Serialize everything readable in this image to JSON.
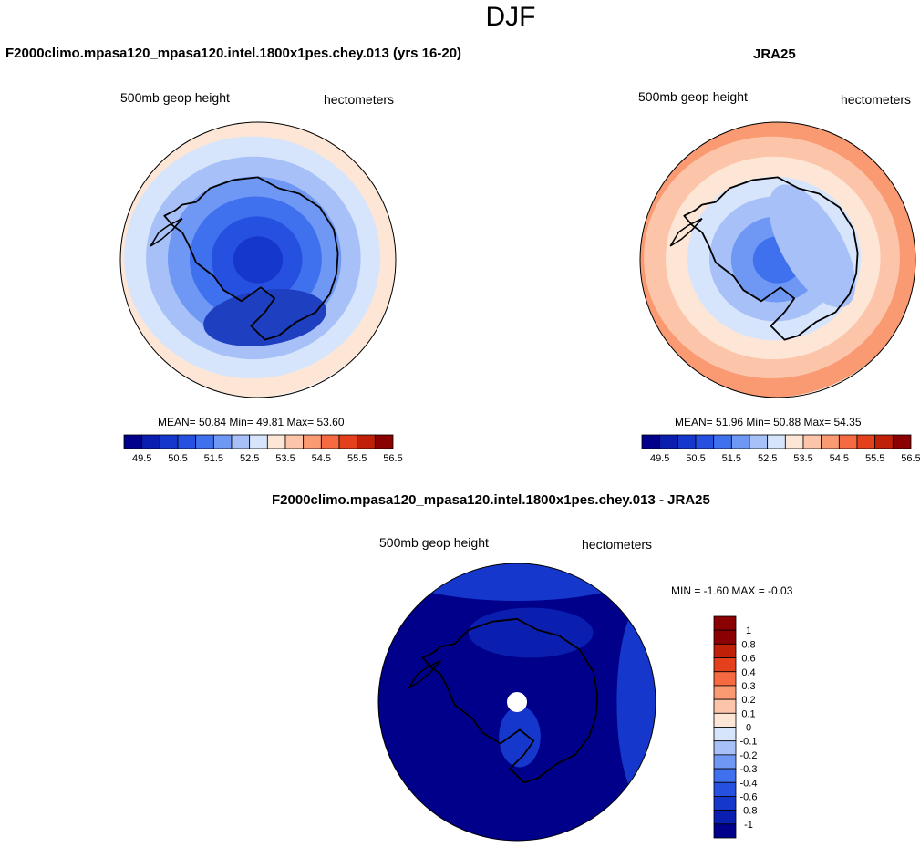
{
  "page": {
    "season_title": "DJF"
  },
  "panels": [
    {
      "id": "model",
      "title": "F2000climo.mpasa120_mpasa120.intel.1800x1pes.chey.013 (yrs 16-20)",
      "left_label": "500mb geop height",
      "right_label": "hectometers",
      "stats": {
        "mean_label": "MEAN=",
        "mean": "50.84",
        "min_label": "Min=",
        "min": "49.81",
        "max_label": "Max=",
        "max": "53.60"
      },
      "colorbar_ticks": [
        "49.5",
        "50.5",
        "51.5",
        "52.5",
        "53.5",
        "54.5",
        "55.5",
        "56.5"
      ]
    },
    {
      "id": "obs",
      "title": "JRA25",
      "left_label": "500mb geop height",
      "right_label": "hectometers",
      "stats": {
        "mean_label": "MEAN=",
        "mean": "51.96",
        "min_label": "Min=",
        "min": "50.88",
        "max_label": "Max=",
        "max": "54.35"
      },
      "colorbar_ticks": [
        "49.5",
        "50.5",
        "51.5",
        "52.5",
        "53.5",
        "54.5",
        "55.5",
        "56.5"
      ]
    },
    {
      "id": "diff",
      "title": "F2000climo.mpasa120_mpasa120.intel.1800x1pes.chey.013 - JRA25",
      "left_label": "500mb geop height",
      "right_label": "hectometers",
      "stats_text": "MIN =  -1.60 MAX =  -0.03",
      "colorbar_ticks": [
        "1",
        "0.8",
        "0.6",
        "0.4",
        "0.3",
        "0.2",
        "0.1",
        "0",
        "-0.1",
        "-0.2",
        "-0.3",
        "-0.4",
        "-0.6",
        "-0.8",
        "-1"
      ]
    }
  ],
  "colors": {
    "abs_scale": [
      "#00008b",
      "#0a1fb0",
      "#1537cc",
      "#2650e0",
      "#3f70ee",
      "#6f98f4",
      "#a7c0f8",
      "#d6e5fb",
      "#fde6d6",
      "#fcc4a8",
      "#fa9a72",
      "#f56a40",
      "#e4401c",
      "#c02008",
      "#8b0000"
    ],
    "diff_scale": [
      "#00008b",
      "#0a1fb0",
      "#1537cc",
      "#2650e0",
      "#3f70ee",
      "#6f98f4",
      "#a7c0f8",
      "#d6e5fb",
      "#fde6d6",
      "#fcc4a8",
      "#fa9a72",
      "#f56a40",
      "#e4401c",
      "#c02008",
      "#8b0000"
    ]
  },
  "chart_data": [
    {
      "type": "heatmap",
      "title": "F2000climo.mpasa120_mpasa120.intel.1800x1pes.chey.013 (yrs 16-20)",
      "variable": "500mb geop height",
      "units": "hectometers",
      "projection": "south polar stereographic",
      "mean": 50.84,
      "min": 49.81,
      "max": 53.6,
      "levels": [
        49.5,
        50,
        50.5,
        51,
        51.5,
        52,
        52.5,
        53,
        53.5,
        54,
        54.5,
        55,
        55.5,
        56,
        56.5
      ],
      "bands_center_to_edge": [
        50.25,
        50.75,
        51.25,
        51.75,
        52.25,
        52.75,
        53.25
      ],
      "legend": "bottom"
    },
    {
      "type": "heatmap",
      "title": "JRA25",
      "variable": "500mb geop height",
      "units": "hectometers",
      "projection": "south polar stereographic",
      "mean": 51.96,
      "min": 50.88,
      "max": 54.35,
      "levels": [
        49.5,
        50,
        50.5,
        51,
        51.5,
        52,
        52.5,
        53,
        53.5,
        54,
        54.5,
        55,
        55.5,
        56,
        56.5
      ],
      "bands_center_to_edge": [
        51.25,
        51.75,
        52.25,
        52.75,
        53.25,
        53.75,
        54.25
      ],
      "legend": "bottom"
    },
    {
      "type": "heatmap",
      "title": "F2000climo.mpasa120_mpasa120.intel.1800x1pes.chey.013 - JRA25",
      "variable": "500mb geop height",
      "units": "hectometers",
      "projection": "south polar stereographic",
      "min": -1.6,
      "max": -0.03,
      "levels": [
        -1,
        -0.8,
        -0.6,
        -0.4,
        -0.3,
        -0.2,
        -0.1,
        0,
        0.1,
        0.2,
        0.3,
        0.4,
        0.6,
        0.8,
        1
      ],
      "dominant_band": "< -1",
      "legend": "right"
    }
  ]
}
